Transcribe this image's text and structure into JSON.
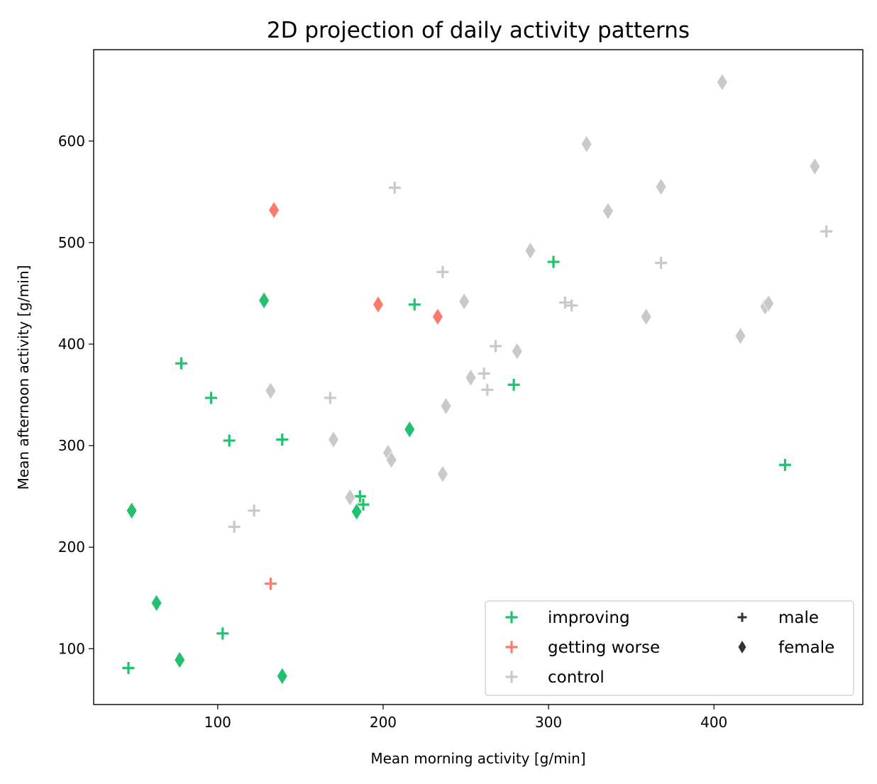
{
  "chart_data": {
    "type": "scatter",
    "title": "2D projection of daily activity patterns",
    "xlabel": "Mean morning activity [g/min]",
    "ylabel": "Mean afternoon activity [g/min]",
    "xlim": [
      25,
      490
    ],
    "ylim": [
      45,
      690
    ],
    "xticks": [
      100,
      200,
      300,
      400
    ],
    "yticks": [
      100,
      200,
      300,
      400,
      500,
      600
    ],
    "grid": false,
    "legend_position": "bottom-right",
    "groups": [
      {
        "name": "improving",
        "color": "#22c16e"
      },
      {
        "name": "getting worse",
        "color": "#fa7a6c"
      },
      {
        "name": "control",
        "color": "#c9c9c9"
      }
    ],
    "markers": [
      {
        "name": "male",
        "shape": "plus"
      },
      {
        "name": "female",
        "shape": "thin-diamond"
      }
    ],
    "legend_marker_color": "#333333",
    "points": [
      {
        "x": 78,
        "y": 381,
        "group": "improving",
        "sex": "male"
      },
      {
        "x": 96,
        "y": 347,
        "group": "improving",
        "sex": "male"
      },
      {
        "x": 107,
        "y": 305,
        "group": "improving",
        "sex": "male"
      },
      {
        "x": 139,
        "y": 306,
        "group": "improving",
        "sex": "male"
      },
      {
        "x": 103,
        "y": 115,
        "group": "improving",
        "sex": "male"
      },
      {
        "x": 46,
        "y": 81,
        "group": "improving",
        "sex": "male"
      },
      {
        "x": 186,
        "y": 250,
        "group": "improving",
        "sex": "male"
      },
      {
        "x": 188,
        "y": 242,
        "group": "improving",
        "sex": "male"
      },
      {
        "x": 219,
        "y": 439,
        "group": "improving",
        "sex": "male"
      },
      {
        "x": 279,
        "y": 360,
        "group": "improving",
        "sex": "male"
      },
      {
        "x": 303,
        "y": 481,
        "group": "improving",
        "sex": "male"
      },
      {
        "x": 443,
        "y": 281,
        "group": "improving",
        "sex": "male"
      },
      {
        "x": 128,
        "y": 443,
        "group": "improving",
        "sex": "female"
      },
      {
        "x": 48,
        "y": 236,
        "group": "improving",
        "sex": "female"
      },
      {
        "x": 63,
        "y": 145,
        "group": "improving",
        "sex": "female"
      },
      {
        "x": 77,
        "y": 89,
        "group": "improving",
        "sex": "female"
      },
      {
        "x": 139,
        "y": 73,
        "group": "improving",
        "sex": "female"
      },
      {
        "x": 184,
        "y": 235,
        "group": "improving",
        "sex": "female"
      },
      {
        "x": 216,
        "y": 316,
        "group": "improving",
        "sex": "female"
      },
      {
        "x": 132,
        "y": 164,
        "group": "getting worse",
        "sex": "male"
      },
      {
        "x": 134,
        "y": 532,
        "group": "getting worse",
        "sex": "female"
      },
      {
        "x": 197,
        "y": 439,
        "group": "getting worse",
        "sex": "female"
      },
      {
        "x": 233,
        "y": 427,
        "group": "getting worse",
        "sex": "female"
      },
      {
        "x": 110,
        "y": 220,
        "group": "control",
        "sex": "male"
      },
      {
        "x": 122,
        "y": 236,
        "group": "control",
        "sex": "male"
      },
      {
        "x": 168,
        "y": 347,
        "group": "control",
        "sex": "male"
      },
      {
        "x": 207,
        "y": 554,
        "group": "control",
        "sex": "male"
      },
      {
        "x": 236,
        "y": 471,
        "group": "control",
        "sex": "male"
      },
      {
        "x": 261,
        "y": 371,
        "group": "control",
        "sex": "male"
      },
      {
        "x": 263,
        "y": 355,
        "group": "control",
        "sex": "male"
      },
      {
        "x": 268,
        "y": 398,
        "group": "control",
        "sex": "male"
      },
      {
        "x": 310,
        "y": 441,
        "group": "control",
        "sex": "male"
      },
      {
        "x": 314,
        "y": 438,
        "group": "control",
        "sex": "male"
      },
      {
        "x": 368,
        "y": 480,
        "group": "control",
        "sex": "male"
      },
      {
        "x": 468,
        "y": 511,
        "group": "control",
        "sex": "male"
      },
      {
        "x": 132,
        "y": 354,
        "group": "control",
        "sex": "female"
      },
      {
        "x": 170,
        "y": 306,
        "group": "control",
        "sex": "female"
      },
      {
        "x": 180,
        "y": 249,
        "group": "control",
        "sex": "female"
      },
      {
        "x": 203,
        "y": 293,
        "group": "control",
        "sex": "female"
      },
      {
        "x": 205,
        "y": 286,
        "group": "control",
        "sex": "female"
      },
      {
        "x": 236,
        "y": 272,
        "group": "control",
        "sex": "female"
      },
      {
        "x": 238,
        "y": 339,
        "group": "control",
        "sex": "female"
      },
      {
        "x": 249,
        "y": 442,
        "group": "control",
        "sex": "female"
      },
      {
        "x": 253,
        "y": 367,
        "group": "control",
        "sex": "female"
      },
      {
        "x": 281,
        "y": 393,
        "group": "control",
        "sex": "female"
      },
      {
        "x": 289,
        "y": 492,
        "group": "control",
        "sex": "female"
      },
      {
        "x": 323,
        "y": 597,
        "group": "control",
        "sex": "female"
      },
      {
        "x": 336,
        "y": 531,
        "group": "control",
        "sex": "female"
      },
      {
        "x": 359,
        "y": 427,
        "group": "control",
        "sex": "female"
      },
      {
        "x": 368,
        "y": 555,
        "group": "control",
        "sex": "female"
      },
      {
        "x": 405,
        "y": 658,
        "group": "control",
        "sex": "female"
      },
      {
        "x": 416,
        "y": 408,
        "group": "control",
        "sex": "female"
      },
      {
        "x": 431,
        "y": 437,
        "group": "control",
        "sex": "female"
      },
      {
        "x": 433,
        "y": 440,
        "group": "control",
        "sex": "female"
      },
      {
        "x": 461,
        "y": 575,
        "group": "control",
        "sex": "female"
      }
    ]
  }
}
